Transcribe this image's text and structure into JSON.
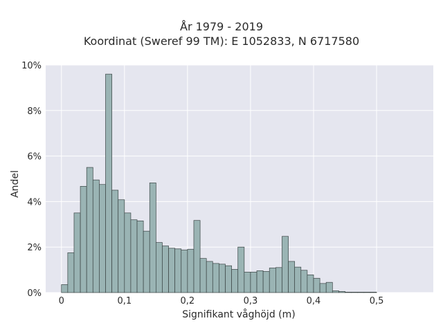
{
  "chart_data": {
    "type": "bar",
    "title": "År 1979 - 2019",
    "subtitle": "Koordinat (Sweref 99 TM): E 1052833, N 6717580",
    "xlabel": "Signifikant våghöjd (m)",
    "ylabel": "Andel",
    "xlim": [
      -0.025,
      0.59
    ],
    "ylim": [
      0,
      10
    ],
    "grid": true,
    "bin_width": 0.01,
    "bin_start": 0.0,
    "x_ticks": [
      "0",
      "0,1",
      "0,2",
      "0,3",
      "0,4",
      "0,5"
    ],
    "x_tick_values": [
      0,
      0.1,
      0.2,
      0.3,
      0.4,
      0.5
    ],
    "y_ticks": [
      "0%",
      "2%",
      "4%",
      "6%",
      "8%",
      "10%"
    ],
    "y_tick_values": [
      0,
      2,
      4,
      6,
      8,
      10
    ],
    "values": [
      0.35,
      1.75,
      3.5,
      4.67,
      5.5,
      4.95,
      4.75,
      9.6,
      4.5,
      4.08,
      3.5,
      3.2,
      3.15,
      2.7,
      4.82,
      2.2,
      2.05,
      1.95,
      1.92,
      1.87,
      1.9,
      3.17,
      1.5,
      1.37,
      1.28,
      1.25,
      1.18,
      1.02,
      2.0,
      0.9,
      0.9,
      0.96,
      0.93,
      1.08,
      1.1,
      2.47,
      1.37,
      1.12,
      0.98,
      0.78,
      0.63,
      0.4,
      0.45,
      0.08,
      0.05,
      0.02,
      0.02,
      0.02,
      0.02,
      0.02
    ],
    "colors": {
      "bar_fill": "#9ab4b4",
      "bar_stroke": "#3a4444",
      "plot_bg": "#e5e6ef",
      "grid": "#ffffff"
    }
  }
}
